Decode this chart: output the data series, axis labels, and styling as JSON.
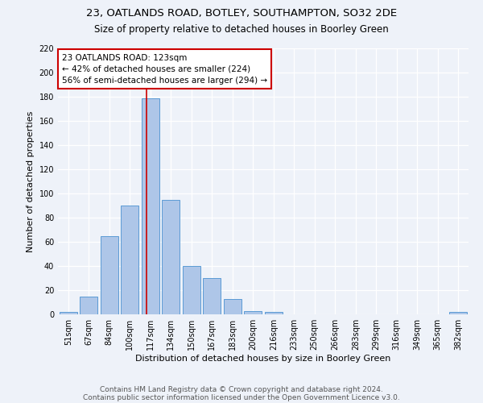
{
  "title1": "23, OATLANDS ROAD, BOTLEY, SOUTHAMPTON, SO32 2DE",
  "title2": "Size of property relative to detached houses in Boorley Green",
  "xlabel": "Distribution of detached houses by size in Boorley Green",
  "ylabel": "Number of detached properties",
  "categories": [
    "51sqm",
    "67sqm",
    "84sqm",
    "100sqm",
    "117sqm",
    "134sqm",
    "150sqm",
    "167sqm",
    "183sqm",
    "200sqm",
    "216sqm",
    "233sqm",
    "250sqm",
    "266sqm",
    "283sqm",
    "299sqm",
    "316sqm",
    "349sqm",
    "365sqm",
    "382sqm"
  ],
  "bar_heights": [
    2,
    15,
    65,
    90,
    179,
    95,
    40,
    30,
    13,
    3,
    2,
    0,
    0,
    0,
    0,
    0,
    0,
    0,
    0,
    2
  ],
  "bar_color": "#aec6e8",
  "bar_edge_color": "#5b9bd5",
  "vline_color": "#cc0000",
  "annotation_box_text": "23 OATLANDS ROAD: 123sqm\n← 42% of detached houses are smaller (224)\n56% of semi-detached houses are larger (294) →",
  "annotation_box_color": "#cc0000",
  "annotation_box_fill": "#ffffff",
  "ylim": [
    0,
    220
  ],
  "yticks": [
    0,
    20,
    40,
    60,
    80,
    100,
    120,
    140,
    160,
    180,
    200,
    220
  ],
  "footer1": "Contains HM Land Registry data © Crown copyright and database right 2024.",
  "footer2": "Contains public sector information licensed under the Open Government Licence v3.0.",
  "background_color": "#eef2f9",
  "grid_color": "#ffffff",
  "title_fontsize": 9.5,
  "subtitle_fontsize": 8.5,
  "axis_label_fontsize": 8,
  "tick_fontsize": 7,
  "footer_fontsize": 6.5,
  "annot_fontsize": 7.5
}
